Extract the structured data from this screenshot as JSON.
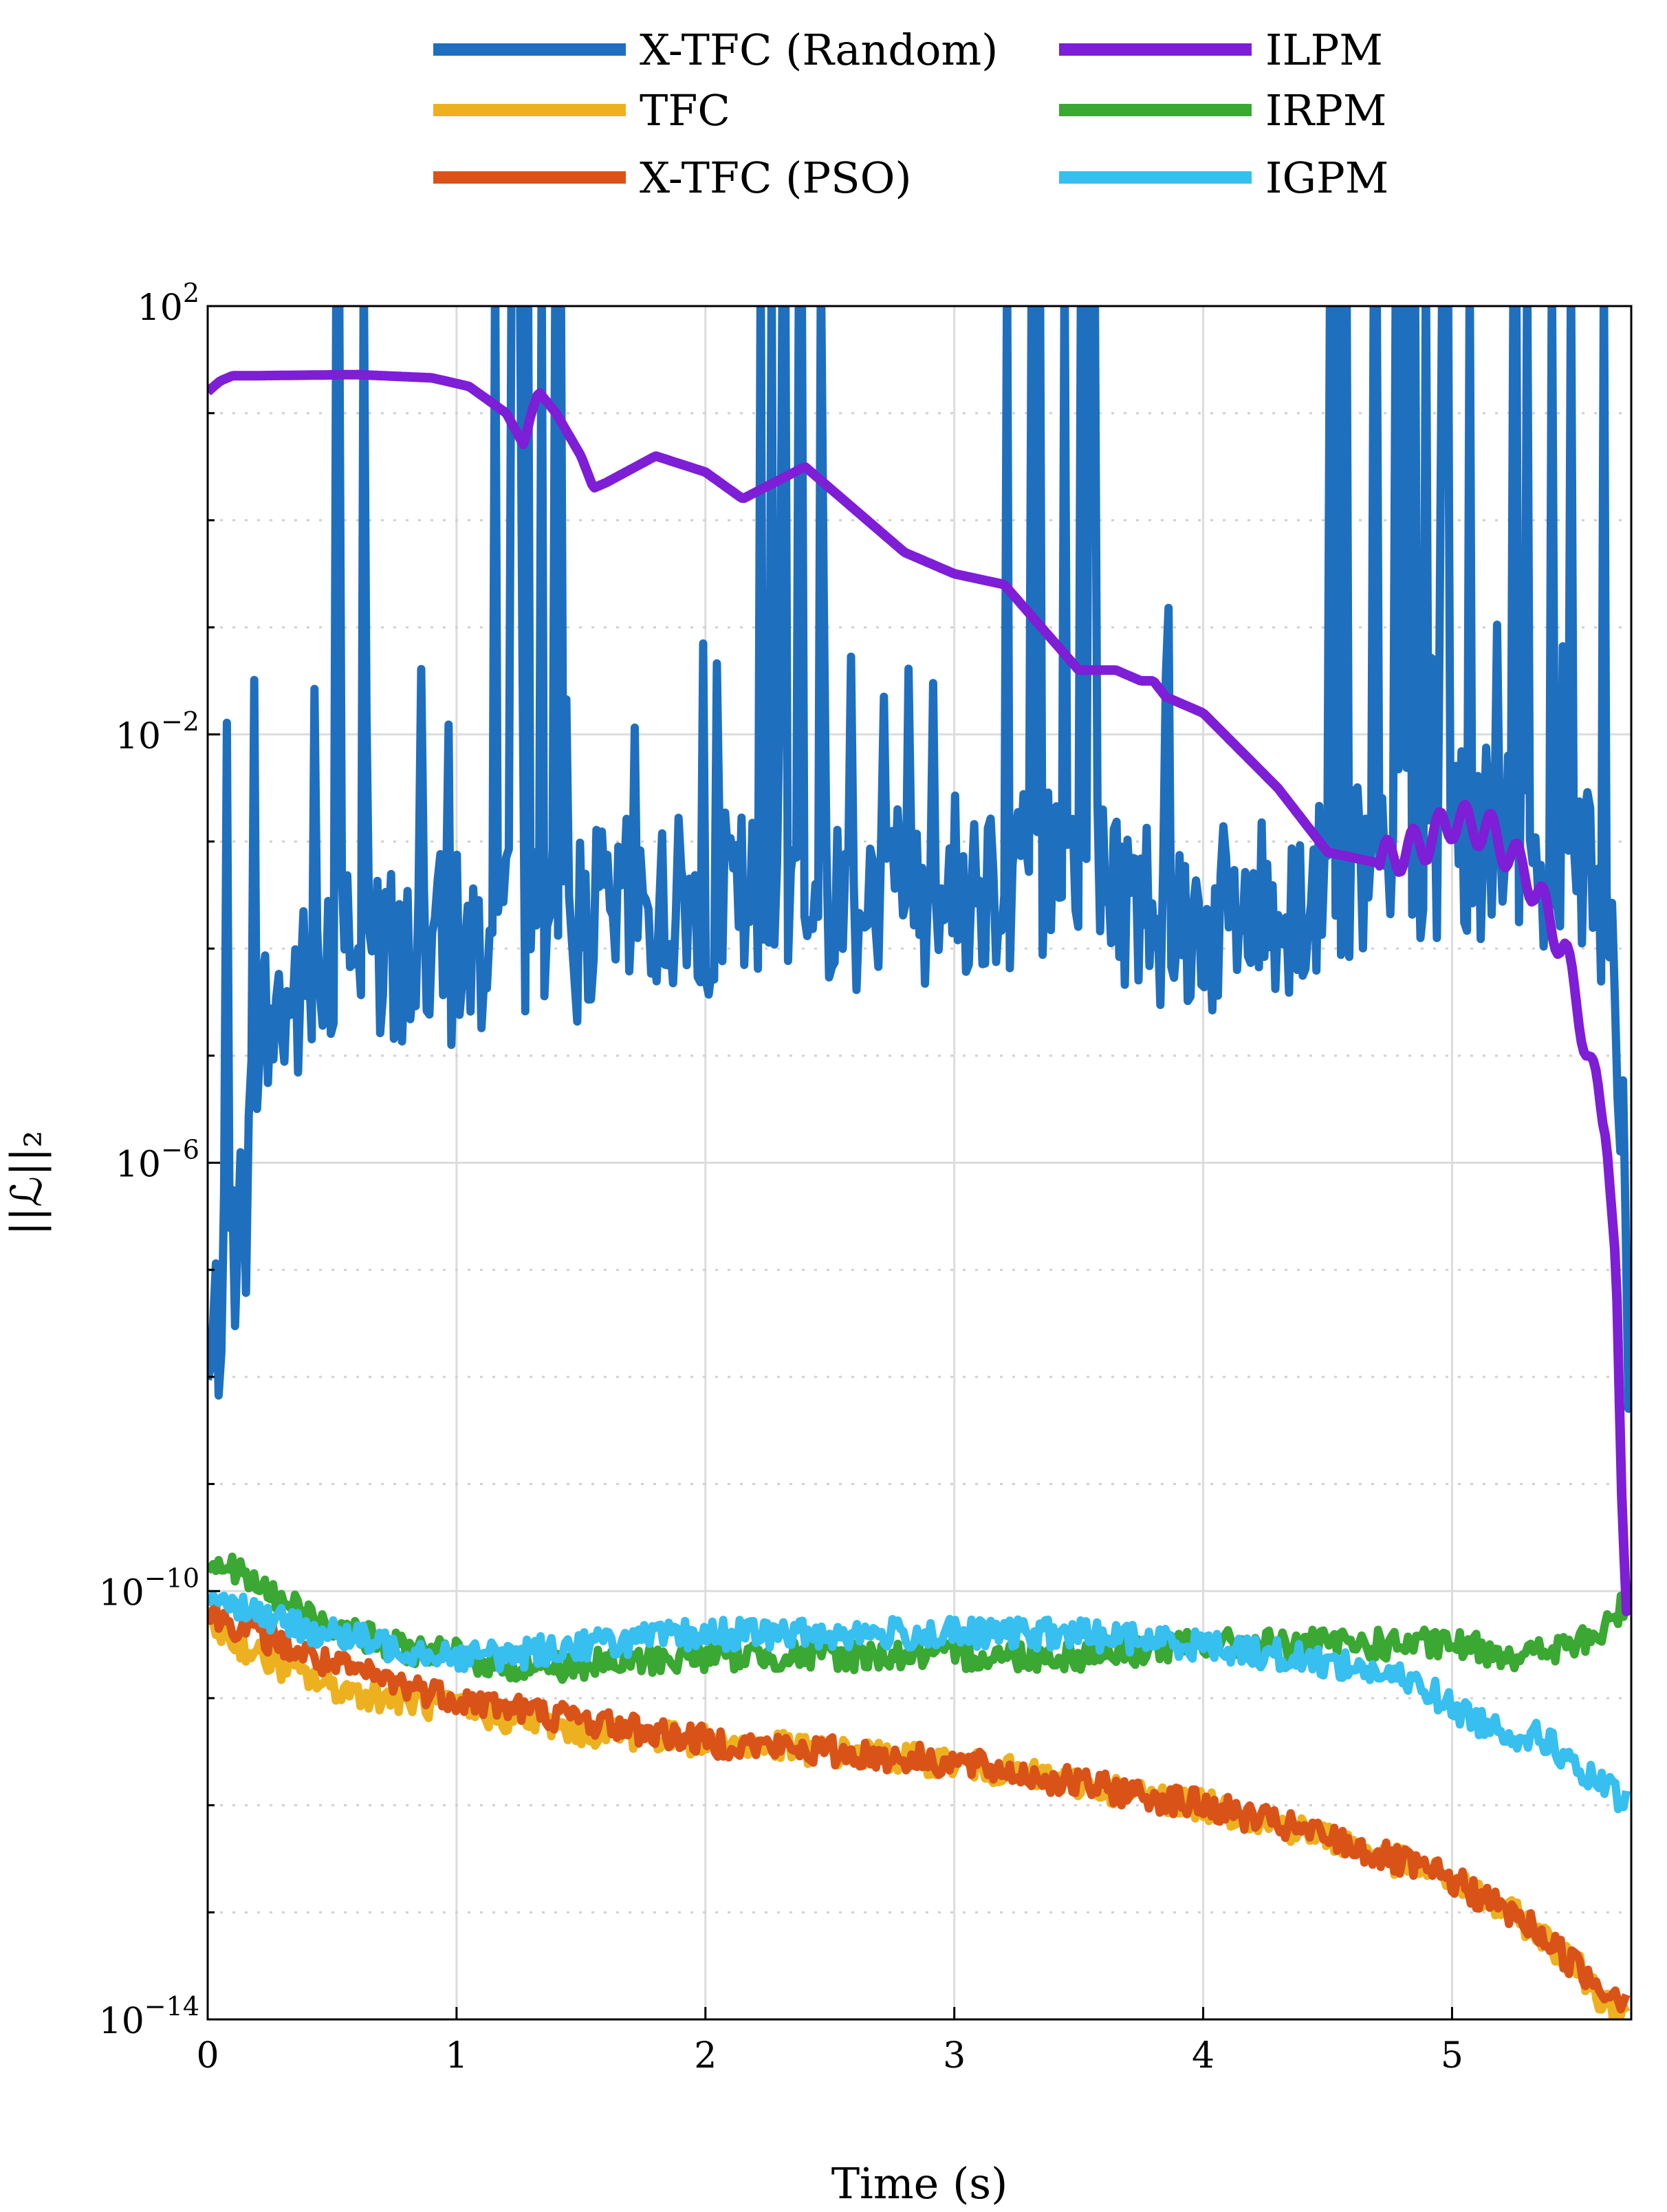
{
  "chart_data": {
    "type": "line",
    "xlabel": "Time (s)",
    "ylabel": "||ℒ||₂",
    "xlim": [
      0,
      5.72
    ],
    "ylim_log10": [
      -14,
      2
    ],
    "log_y": true,
    "grid": true,
    "legend_position": "top, outside, two columns",
    "x_ticks": [
      "0",
      "1",
      "2",
      "3",
      "4",
      "5"
    ],
    "x_tick_values": [
      0,
      1,
      2,
      3,
      4,
      5
    ],
    "y_ticks": [
      {
        "base": "10",
        "exp": "2",
        "value": 2
      },
      {
        "base": "10",
        "exp": "−2",
        "value": -2
      },
      {
        "base": "10",
        "exp": "−6",
        "value": -6
      },
      {
        "base": "10",
        "exp": "−10",
        "value": -10
      },
      {
        "base": "10",
        "exp": "−14",
        "value": -14
      }
    ],
    "series": [
      {
        "name": "X-TFC (Random)",
        "color": "#1f6fbf",
        "style": "noisy",
        "x": [
          0.0,
          0.05,
          0.1,
          0.15,
          0.2,
          0.3,
          0.4,
          0.5,
          0.7,
          0.9,
          1.0,
          1.2,
          1.5,
          1.8,
          2.0,
          2.3,
          2.6,
          3.0,
          3.2,
          3.4,
          3.6,
          3.8,
          4.0,
          4.3,
          4.6,
          4.9,
          5.2,
          5.4,
          5.5,
          5.6,
          5.65,
          5.7,
          5.72
        ],
        "log10_y": [
          -8.2,
          -7.3,
          -6.8,
          -6.5,
          -4.8,
          -4.6,
          -4.4,
          -4.2,
          -4.1,
          -4.0,
          -4.0,
          -3.9,
          -3.8,
          -3.6,
          -3.6,
          -3.5,
          -3.5,
          -3.4,
          -3.3,
          -3.3,
          -3.4,
          -3.6,
          -3.8,
          -3.6,
          -3.4,
          -3.1,
          -3.0,
          -3.1,
          -3.0,
          -3.5,
          -4.5,
          -6.5,
          -8.5
        ],
        "spike_ranges": [
          [
            0.45,
            0.75
          ],
          [
            1.15,
            1.45
          ],
          [
            2.2,
            2.5
          ],
          [
            3.2,
            3.6
          ],
          [
            4.5,
            5.65
          ]
        ],
        "spike_max_log10": 2
      },
      {
        "name": "TFC",
        "color": "#edb120",
        "style": "noisy",
        "x": [
          0.0,
          0.2,
          0.5,
          1.0,
          1.5,
          2.0,
          2.5,
          3.0,
          3.5,
          4.0,
          4.5,
          5.0,
          5.3,
          5.5,
          5.6,
          5.7
        ],
        "log10_y": [
          -10.3,
          -10.6,
          -10.9,
          -11.1,
          -11.3,
          -11.4,
          -11.5,
          -11.6,
          -11.8,
          -12.0,
          -12.3,
          -12.7,
          -13.1,
          -13.5,
          -13.8,
          -13.9
        ]
      },
      {
        "name": "X-TFC (PSO)",
        "color": "#d95319",
        "style": "noisy",
        "x": [
          0.0,
          0.2,
          0.5,
          1.0,
          1.5,
          2.0,
          2.5,
          3.0,
          3.5,
          4.0,
          4.5,
          5.0,
          5.3,
          5.5,
          5.6,
          5.7
        ],
        "log10_y": [
          -10.2,
          -10.4,
          -10.7,
          -11.0,
          -11.2,
          -11.4,
          -11.5,
          -11.6,
          -11.8,
          -12.0,
          -12.3,
          -12.7,
          -13.1,
          -13.5,
          -13.7,
          -13.8
        ]
      },
      {
        "name": "ILPM",
        "color": "#7e1ed6",
        "style": "smooth",
        "x": [
          0.0,
          0.05,
          0.1,
          0.15,
          0.2,
          0.6,
          0.9,
          1.05,
          1.2,
          1.27,
          1.3,
          1.33,
          1.4,
          1.5,
          1.55,
          1.6,
          1.8,
          2.0,
          2.15,
          2.4,
          2.6,
          2.8,
          3.0,
          3.2,
          3.35,
          3.5,
          3.65,
          3.75,
          3.8,
          3.85,
          4.0,
          4.3,
          4.5,
          4.7,
          4.9,
          5.0,
          5.15,
          5.3,
          5.45,
          5.55,
          5.62,
          5.66,
          5.68,
          5.7,
          5.72
        ],
        "log10_y": [
          1.2,
          1.3,
          1.35,
          1.35,
          1.35,
          1.36,
          1.33,
          1.25,
          1.0,
          0.7,
          1.0,
          1.2,
          1.0,
          0.6,
          0.3,
          0.35,
          0.6,
          0.45,
          0.2,
          0.5,
          0.1,
          -0.3,
          -0.5,
          -0.6,
          -1.0,
          -1.4,
          -1.4,
          -1.5,
          -1.5,
          -1.65,
          -1.8,
          -2.5,
          -3.1,
          -3.2,
          -3.0,
          -2.8,
          -2.9,
          -3.3,
          -4.0,
          -5.0,
          -5.8,
          -7.0,
          -9.0,
          -10.2,
          -10.0
        ]
      },
      {
        "name": "IRPM",
        "color": "#3aa832",
        "style": "noisy",
        "x": [
          0.0,
          0.1,
          0.3,
          0.5,
          0.7,
          1.0,
          1.2,
          1.5,
          2.0,
          2.5,
          3.0,
          3.5,
          4.0,
          4.5,
          5.0,
          5.3,
          5.5,
          5.6,
          5.7
        ],
        "log10_y": [
          -9.7,
          -9.8,
          -10.1,
          -10.3,
          -10.5,
          -10.6,
          -10.7,
          -10.7,
          -10.6,
          -10.6,
          -10.6,
          -10.6,
          -10.5,
          -10.5,
          -10.5,
          -10.6,
          -10.5,
          -10.4,
          -10.1
        ]
      },
      {
        "name": "IGPM",
        "color": "#36bfef",
        "style": "noisy",
        "x": [
          0.0,
          0.1,
          0.3,
          0.5,
          0.7,
          1.0,
          1.2,
          1.5,
          2.0,
          2.5,
          3.0,
          3.5,
          4.0,
          4.3,
          4.6,
          4.9,
          5.0,
          5.2,
          5.4,
          5.5,
          5.6,
          5.7
        ],
        "log10_y": [
          -10.0,
          -10.1,
          -10.3,
          -10.4,
          -10.5,
          -10.6,
          -10.6,
          -10.5,
          -10.4,
          -10.4,
          -10.4,
          -10.4,
          -10.5,
          -10.6,
          -10.7,
          -10.9,
          -11.1,
          -11.3,
          -11.4,
          -11.7,
          -11.8,
          -12.0
        ]
      }
    ]
  }
}
